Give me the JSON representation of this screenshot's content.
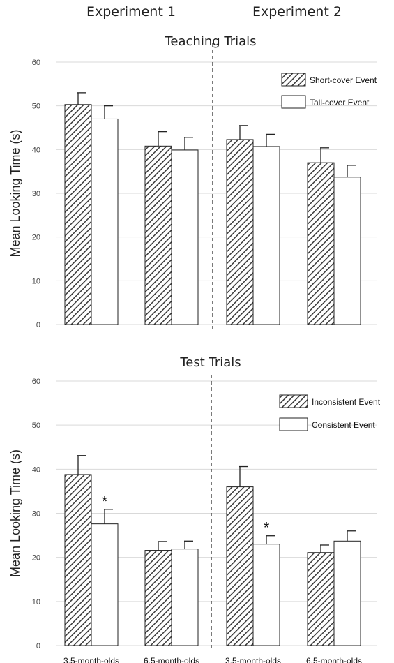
{
  "header": {
    "experiment1": "Experiment 1",
    "experiment2": "Experiment 2"
  },
  "colors": {
    "hatch_stroke": "#3a3a3a",
    "open_fill": "#ffffff",
    "grid": "#d9d9d9"
  },
  "chart_data": [
    {
      "type": "bar",
      "title": "Teaching Trials",
      "ylabel": "Mean Looking Time (s)",
      "xlabel": "",
      "ylim": [
        0,
        60
      ],
      "yticks": [
        0,
        10,
        20,
        30,
        40,
        50,
        60
      ],
      "grid": true,
      "legend_position": "top-right",
      "categories": [
        "",
        "",
        "",
        ""
      ],
      "groups": [
        "Experiment 1",
        "Experiment 1",
        "Experiment 2",
        "Experiment 2"
      ],
      "series": [
        {
          "name": "Short-cover Event",
          "pattern": "hatched",
          "values": [
            50.3,
            40.8,
            42.3,
            37.0
          ],
          "errors": [
            2.7,
            3.3,
            3.2,
            3.4
          ]
        },
        {
          "name": "Tall-cover Event",
          "pattern": "open",
          "values": [
            47.0,
            39.9,
            40.7,
            33.7
          ],
          "errors": [
            3.0,
            2.9,
            2.8,
            2.7
          ]
        }
      ],
      "annotations": []
    },
    {
      "type": "bar",
      "title": "Test Trials",
      "ylabel": "Mean Looking Time (s)",
      "xlabel": "",
      "ylim": [
        0,
        60
      ],
      "yticks": [
        0,
        10,
        20,
        30,
        40,
        50,
        60
      ],
      "grid": true,
      "legend_position": "top-right",
      "categories": [
        "3.5-month-olds",
        "6.5-month-olds",
        "3.5-month-olds",
        "6.5-month-olds"
      ],
      "groups": [
        "Experiment 1",
        "Experiment 1",
        "Experiment 2",
        "Experiment 2"
      ],
      "series": [
        {
          "name": "Inconsistent Event",
          "pattern": "hatched",
          "values": [
            38.8,
            21.6,
            36.0,
            21.1
          ],
          "errors": [
            4.3,
            2.0,
            4.6,
            1.7
          ]
        },
        {
          "name": "Consistent Event",
          "pattern": "open",
          "values": [
            27.6,
            21.9,
            23.0,
            23.7
          ],
          "errors": [
            3.3,
            1.8,
            1.9,
            2.3
          ]
        }
      ],
      "annotations": [
        {
          "text": "*",
          "category_index": 0,
          "series_index": 1
        },
        {
          "text": "*",
          "category_index": 2,
          "series_index": 1
        }
      ]
    }
  ]
}
